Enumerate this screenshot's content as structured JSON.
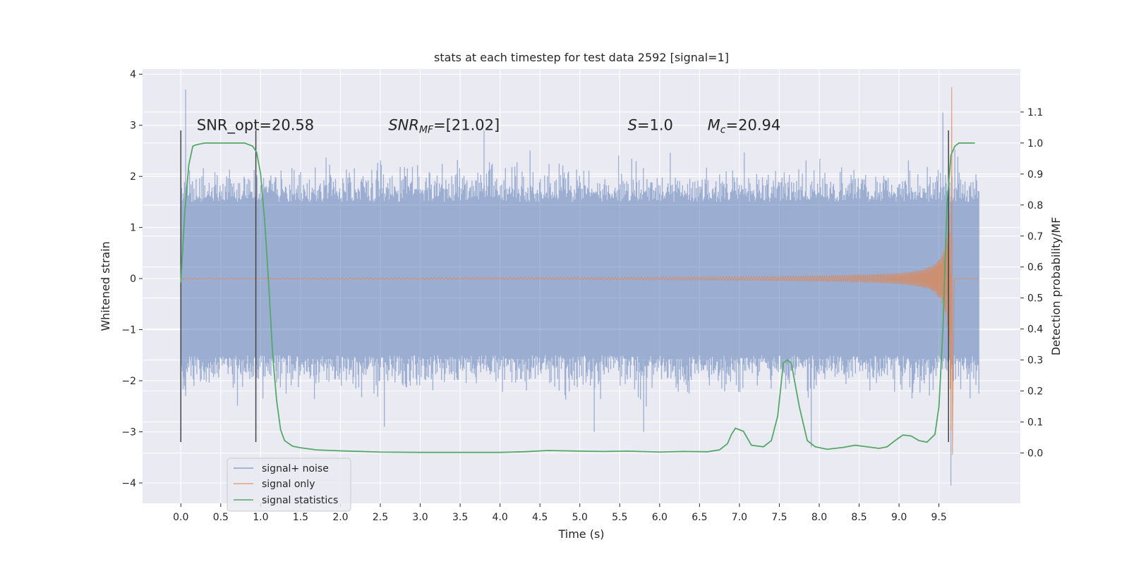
{
  "chart_data": {
    "type": "line",
    "title": "stats at each timestep for test data 2592 [signal=1]",
    "xlabel": "Time (s)",
    "ylabel": "Whitened strain",
    "ylabel_right": "Detection probability/MF",
    "xlim": [
      -0.48,
      10.52
    ],
    "ylim": [
      -4.4,
      4.1
    ],
    "ylim_right": [
      -0.1625,
      1.2385
    ],
    "xticks": [
      0.0,
      0.5,
      1.0,
      1.5,
      2.0,
      2.5,
      3.0,
      3.5,
      4.0,
      4.5,
      5.0,
      5.5,
      6.0,
      6.5,
      7.0,
      7.5,
      8.0,
      8.5,
      9.0,
      9.5
    ],
    "xtick_labels": [
      "0.0",
      "0.5",
      "1.0",
      "1.5",
      "2.0",
      "2.5",
      "3.0",
      "3.5",
      "4.0",
      "4.5",
      "5.0",
      "5.5",
      "6.0",
      "6.5",
      "7.0",
      "7.5",
      "8.0",
      "8.5",
      "9.0",
      "9.5"
    ],
    "yticks": [
      -4,
      -3,
      -2,
      -1,
      0,
      1,
      2,
      3,
      4
    ],
    "ytick_labels": [
      "−4",
      "−3",
      "−2",
      "−1",
      "0",
      "1",
      "2",
      "3",
      "4"
    ],
    "yticks_right": [
      0.0,
      0.1,
      0.2,
      0.3,
      0.4,
      0.5,
      0.6,
      0.7,
      0.8,
      0.9,
      1.0,
      1.1
    ],
    "ytick_labels_right": [
      "0.0",
      "0.1",
      "0.2",
      "0.3",
      "0.4",
      "0.5",
      "0.6",
      "0.7",
      "0.8",
      "0.9",
      "1.0",
      "1.1"
    ],
    "grid": true,
    "legend_position": "lower-left",
    "annotations": [
      {
        "text": "SNR_opt=20.58",
        "x": 0.2,
        "y": 3.0
      },
      {
        "text": "SNR_MF=[21.02]",
        "x": 2.6,
        "y": 3.0,
        "math": "snr"
      },
      {
        "text": "S=1.0",
        "x": 5.6,
        "y": 3.0,
        "math": "s"
      },
      {
        "text": "M_c=20.94",
        "x": 6.6,
        "y": 3.0,
        "math": "mc"
      }
    ],
    "vlines": [
      {
        "x": 0.0,
        "ymin": -3.2,
        "ymax": 2.9
      },
      {
        "x": 0.94,
        "ymin": -3.2,
        "ymax": 2.9
      },
      {
        "x": 9.62,
        "ymin": -3.2,
        "ymax": 2.9
      }
    ],
    "series": [
      {
        "name": "signal+ noise",
        "color": "#4c72b0",
        "axis": "left",
        "style": "noise",
        "x_range": [
          0.0,
          10.0
        ],
        "approx_envelope": {
          "typical": 1.5,
          "max": 3.7,
          "min": -4.05
        },
        "spikes": [
          {
            "x": 0.06,
            "y": 3.7
          },
          {
            "x": 0.06,
            "y": -2.3
          },
          {
            "x": 2.55,
            "y": -2.9
          },
          {
            "x": 3.8,
            "y": 2.9
          },
          {
            "x": 5.18,
            "y": -3.0
          },
          {
            "x": 5.8,
            "y": -3.0
          },
          {
            "x": 7.9,
            "y": -3.3
          },
          {
            "x": 9.55,
            "y": 3.25
          },
          {
            "x": 9.65,
            "y": -4.05
          }
        ]
      },
      {
        "name": "signal only",
        "color": "#dd8452",
        "axis": "left",
        "style": "chirp",
        "x_range": [
          0.0,
          10.0
        ],
        "merger_time": 9.65,
        "peak": 3.75,
        "peak_negative": -3.45
      },
      {
        "name": "signal statistics",
        "color": "#55a868",
        "axis": "right",
        "style": "line",
        "x": [
          0.0,
          0.05,
          0.1,
          0.15,
          0.2,
          0.3,
          0.5,
          0.7,
          0.8,
          0.9,
          0.95,
          1.0,
          1.05,
          1.1,
          1.15,
          1.2,
          1.25,
          1.3,
          1.4,
          1.5,
          1.7,
          2.0,
          2.5,
          3.0,
          3.5,
          4.0,
          4.3,
          4.6,
          5.0,
          5.3,
          5.6,
          6.0,
          6.3,
          6.6,
          6.75,
          6.85,
          6.9,
          6.95,
          7.05,
          7.15,
          7.3,
          7.4,
          7.48,
          7.55,
          7.6,
          7.65,
          7.75,
          7.85,
          7.95,
          8.1,
          8.3,
          8.45,
          8.6,
          8.75,
          8.85,
          8.95,
          9.05,
          9.15,
          9.25,
          9.35,
          9.45,
          9.5,
          9.55,
          9.6,
          9.65,
          9.7,
          9.75,
          9.85,
          9.95
        ],
        "y": [
          0.55,
          0.78,
          0.93,
          0.99,
          0.995,
          1.0,
          1.0,
          1.0,
          1.0,
          0.99,
          0.97,
          0.9,
          0.75,
          0.55,
          0.32,
          0.17,
          0.075,
          0.04,
          0.022,
          0.017,
          0.01,
          0.007,
          0.003,
          0.002,
          0.002,
          0.002,
          0.004,
          0.008,
          0.006,
          0.005,
          0.006,
          0.003,
          0.005,
          0.004,
          0.01,
          0.03,
          0.06,
          0.08,
          0.07,
          0.025,
          0.02,
          0.04,
          0.12,
          0.29,
          0.3,
          0.29,
          0.15,
          0.04,
          0.02,
          0.012,
          0.018,
          0.025,
          0.02,
          0.015,
          0.02,
          0.04,
          0.058,
          0.055,
          0.04,
          0.035,
          0.06,
          0.15,
          0.4,
          0.8,
          0.96,
          0.99,
          1.0,
          1.0,
          1.0
        ]
      }
    ]
  }
}
